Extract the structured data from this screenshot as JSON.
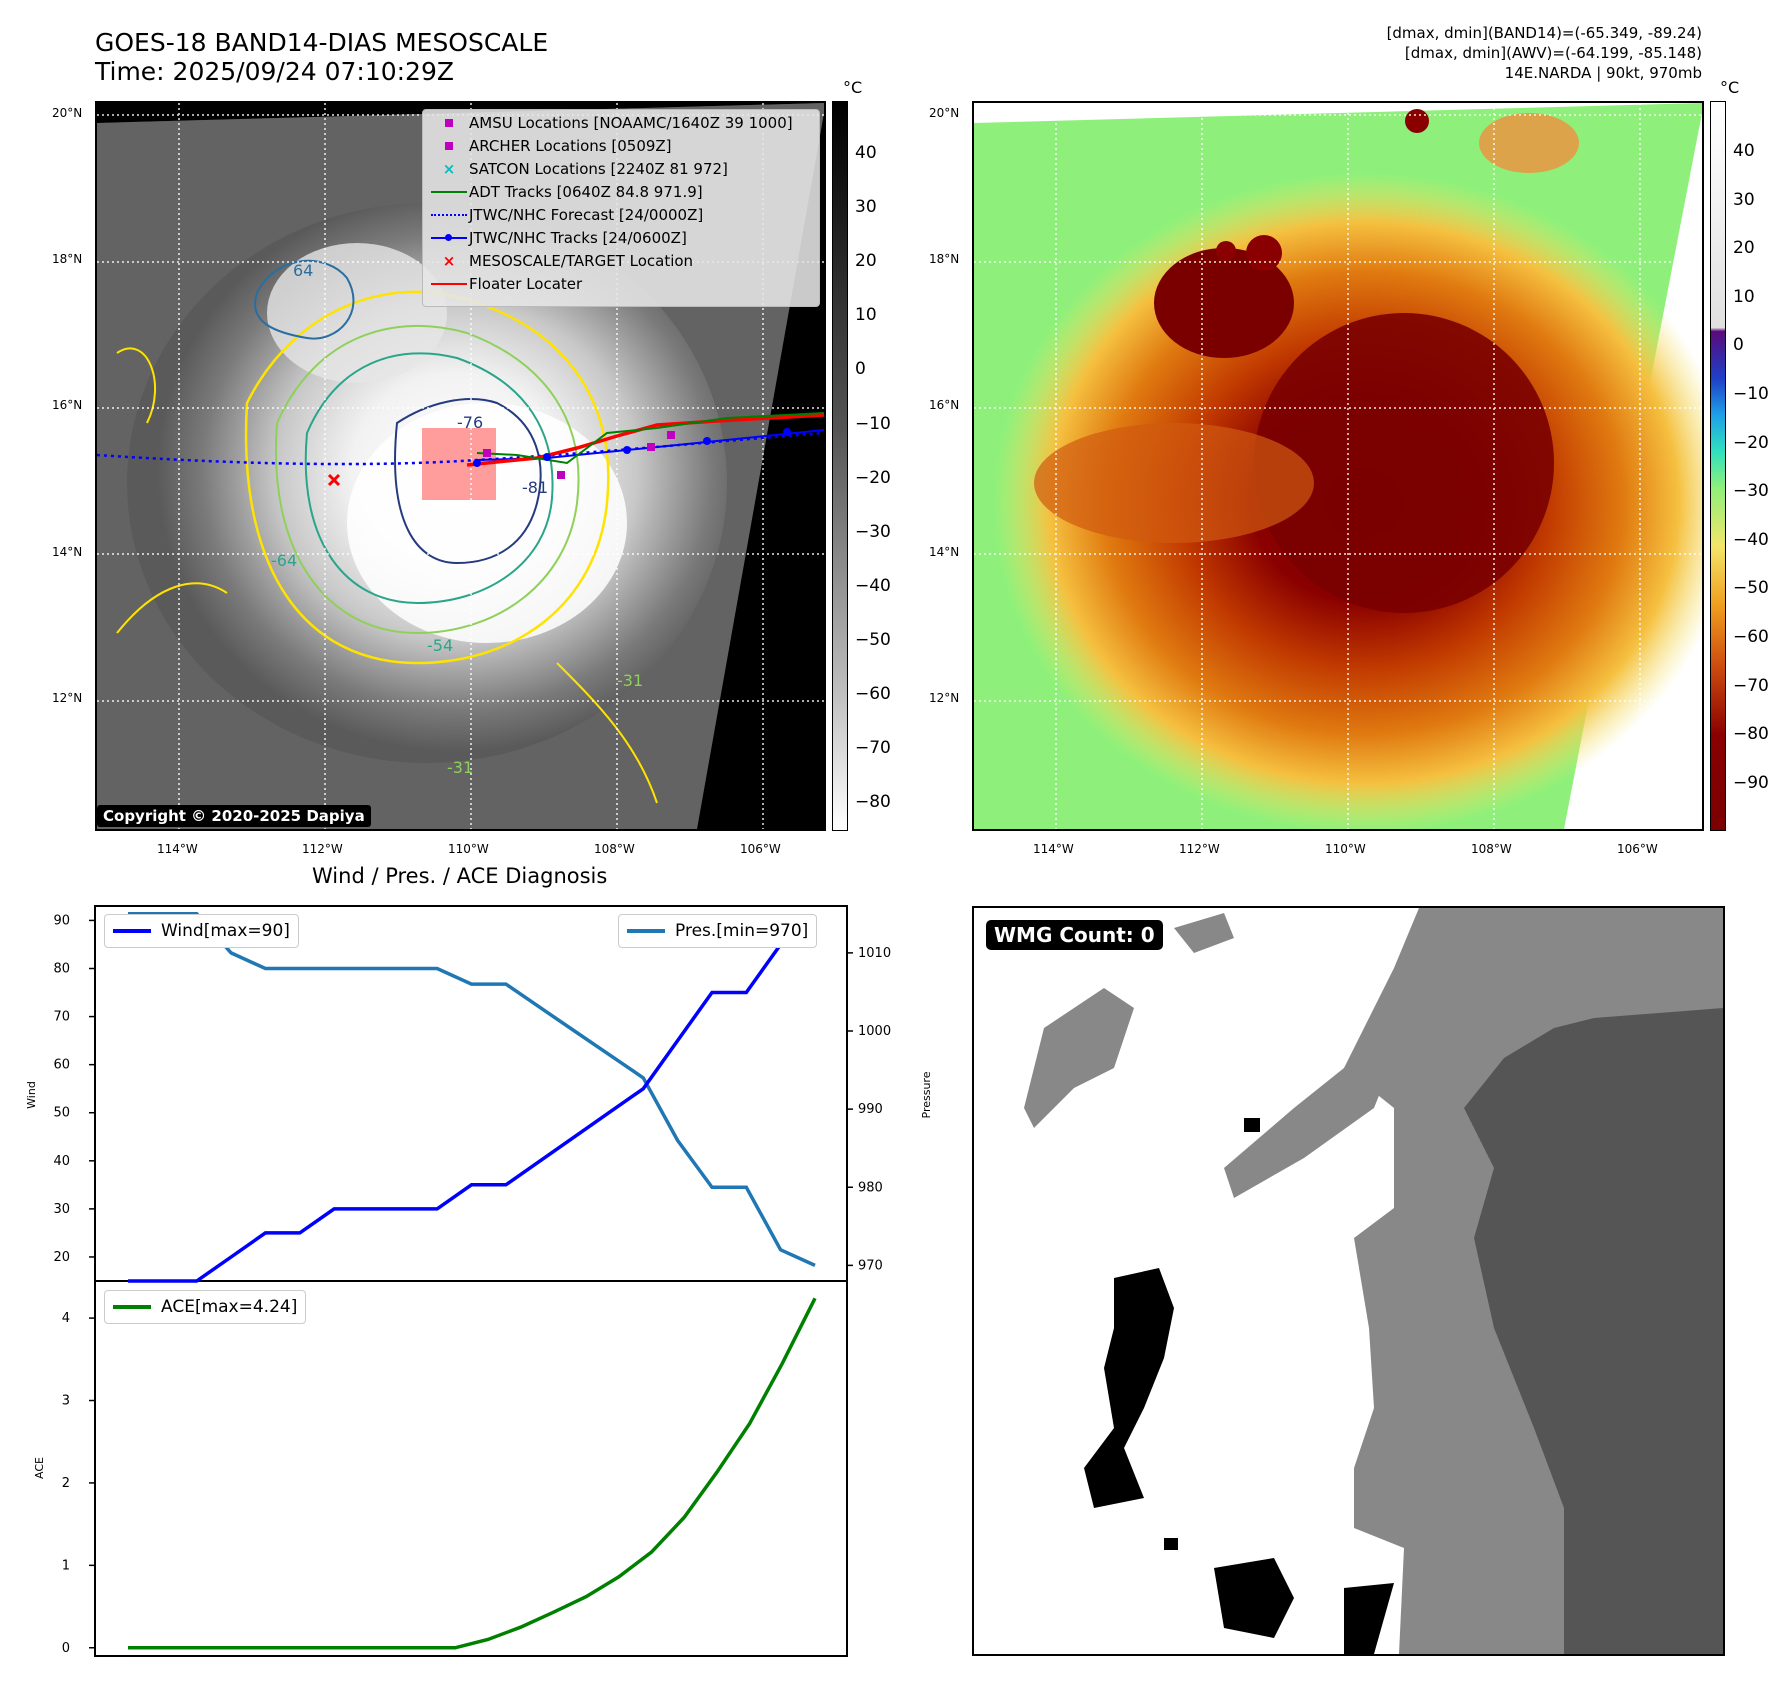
{
  "header": {
    "title_line1": "GOES-18 BAND14-DIAS MESOSCALE",
    "title_line2": "Time: 2025/09/24 07:10:29Z",
    "info_line1": "[dmax, dmin](BAND14)=(-65.349, -89.24)",
    "info_line2": "[dmax, dmin](AWV)=(-64.199, -85.148)",
    "info_line3": "14E.NARDA | 90kt, 970mb"
  },
  "map": {
    "lat_labels": [
      "20°N",
      "18°N",
      "16°N",
      "14°N",
      "12°N"
    ],
    "lon_labels": [
      "114°W",
      "112°W",
      "110°W",
      "108°W",
      "106°W"
    ],
    "contour_labels": [
      "64",
      "-64",
      "-54",
      "-31",
      "-81",
      "-76",
      "-31"
    ],
    "copyright": "Copyright © 2020-2025 Dapiya",
    "legend": [
      {
        "label": "AMSU Locations [NOAAMC/1640Z 39 1000]",
        "symbol": "square",
        "color": "#bf00bf"
      },
      {
        "label": "ARCHER Locations [0509Z]",
        "symbol": "square",
        "color": "#bf00bf"
      },
      {
        "label": "SATCON Locations [2240Z 81 972]",
        "symbol": "x",
        "color": "#00bfbf"
      },
      {
        "label": "ADT Tracks [0640Z 84.8 971.9]",
        "symbol": "line",
        "color": "#008000"
      },
      {
        "label": "JTWC/NHC Forecast [24/0000Z]",
        "symbol": "dotted",
        "color": "#0000ff"
      },
      {
        "label": "JTWC/NHC Tracks [24/0600Z]",
        "symbol": "dotline",
        "color": "#0000ff"
      },
      {
        "label": "MESOSCALE/TARGET Location",
        "symbol": "x",
        "color": "#ff0000"
      },
      {
        "label": "Floater Locater",
        "symbol": "line",
        "color": "#ff0000"
      }
    ]
  },
  "colorbars": {
    "unit": "°C",
    "gray_ticks": [
      "40",
      "30",
      "20",
      "10",
      "0",
      "−10",
      "−20",
      "−30",
      "−40",
      "−50",
      "−60",
      "−70",
      "−80"
    ],
    "color_ticks": [
      "40",
      "30",
      "20",
      "10",
      "0",
      "−10",
      "−20",
      "−30",
      "−40",
      "−50",
      "−60",
      "−70",
      "−80",
      "−90"
    ]
  },
  "diag": {
    "title": "Wind / Pres. / ACE Diagnosis",
    "wind_legend": "Wind[max=90]",
    "pres_legend": "Pres.[min=970]",
    "ace_legend": "ACE[max=4.24]",
    "wind_label": "Wind",
    "pres_label": "Pressure",
    "ace_label": "ACE",
    "wind_color": "#0000ff",
    "pres_color": "#1f77b4",
    "ace_color": "#008000"
  },
  "wmg": {
    "badge": "WMG Count: 0"
  },
  "chart_data": [
    {
      "type": "line",
      "title": "Wind / Pres. / ACE Diagnosis",
      "ylabel": "Wind",
      "ylim": [
        15,
        93
      ],
      "y_ticks": [
        20,
        30,
        40,
        50,
        60,
        70,
        80,
        90
      ],
      "series": [
        {
          "name": "Wind[max=90]",
          "values": [
            15,
            15,
            15,
            20,
            25,
            25,
            30,
            30,
            30,
            30,
            35,
            35,
            40,
            45,
            50,
            55,
            65,
            75,
            75,
            85,
            90
          ]
        }
      ]
    },
    {
      "type": "line",
      "ylabel": "Pressure",
      "ylim": [
        968,
        1016
      ],
      "y_ticks": [
        970,
        980,
        990,
        1000,
        1010
      ],
      "series": [
        {
          "name": "Pres.[min=970]",
          "values": [
            1015,
            1015,
            1015,
            1010,
            1008,
            1008,
            1008,
            1008,
            1008,
            1008,
            1006,
            1006,
            1003,
            1000,
            997,
            994,
            986,
            980,
            980,
            972,
            970
          ]
        }
      ]
    },
    {
      "type": "line",
      "ylabel": "ACE",
      "ylim": [
        -0.1,
        4.45
      ],
      "y_ticks": [
        0,
        1,
        2,
        3,
        4
      ],
      "series": [
        {
          "name": "ACE[max=4.24]",
          "values": [
            0,
            0,
            0,
            0,
            0,
            0,
            0,
            0,
            0,
            0,
            0,
            0.1,
            0.25,
            0.43,
            0.62,
            0.86,
            1.16,
            1.58,
            2.13,
            2.72,
            3.45,
            4.24
          ]
        }
      ]
    }
  ]
}
